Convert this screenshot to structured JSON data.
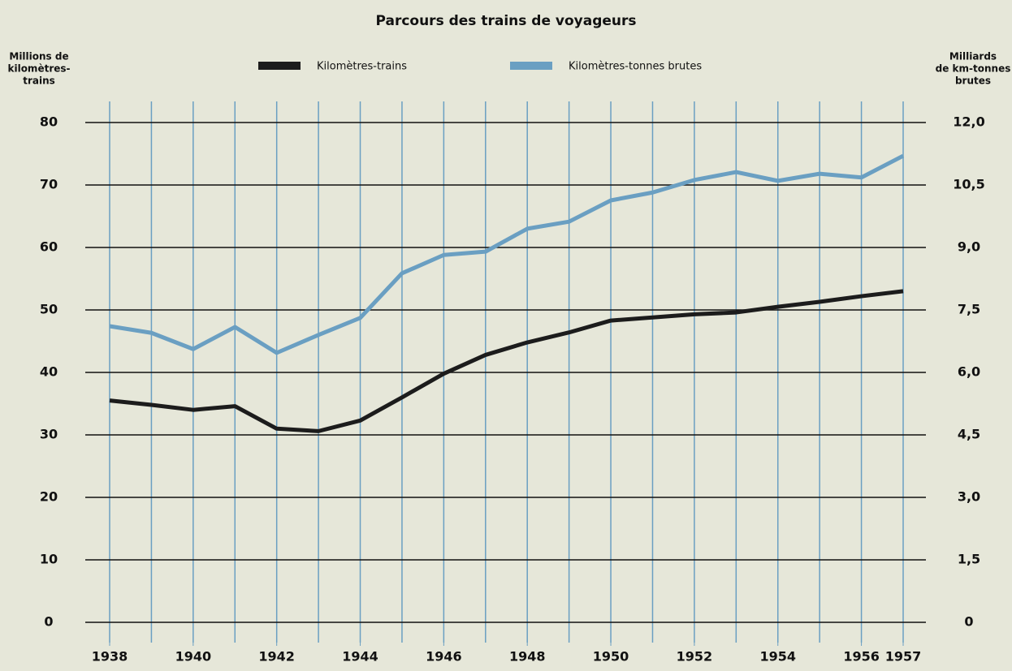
{
  "chart_data": {
    "type": "line",
    "title": "Parcours des trains de voyageurs",
    "y_label": [
      "Millions de",
      "kilomètres-",
      "trains"
    ],
    "y2_label": [
      "Milliards",
      "de km-tonnes",
      "brutes"
    ],
    "x": [
      1938,
      1939,
      1940,
      1941,
      1942,
      1943,
      1944,
      1945,
      1946,
      1947,
      1948,
      1949,
      1950,
      1951,
      1952,
      1953,
      1954,
      1955,
      1956,
      1957
    ],
    "xlim": [
      1938,
      1957
    ],
    "xticks": [
      1938,
      1940,
      1942,
      1944,
      1946,
      1948,
      1950,
      1952,
      1954,
      1956,
      1957
    ],
    "ylim": [
      0,
      80
    ],
    "yticks": [
      0,
      10,
      20,
      30,
      40,
      50,
      60,
      70,
      80
    ],
    "y2lim": [
      0,
      12
    ],
    "y2ticks": [
      0,
      {
        "value": 1.5,
        "label": "1,5"
      },
      {
        "value": 3,
        "label": "3,0"
      },
      {
        "value": 4.5,
        "label": "4,5"
      },
      {
        "value": 6,
        "label": "6,0"
      },
      {
        "value": 7.5,
        "label": "7,5"
      },
      {
        "value": 9,
        "label": "9,0"
      },
      {
        "value": 10.5,
        "label": "10,5"
      },
      {
        "value": 12,
        "label": "12,0"
      }
    ],
    "grid": true,
    "series": [
      {
        "name": "Kilomètres-trains",
        "color": "#1c1c1c",
        "values": [
          35.5,
          34.8,
          34.0,
          34.6,
          31.0,
          30.6,
          32.3,
          36.0,
          39.8,
          42.8,
          44.8,
          46.4,
          48.3,
          48.8,
          49.3,
          49.6,
          50.5,
          51.3,
          52.2,
          53.0
        ]
      },
      {
        "name": "Kilomètres-tonnes brutes",
        "color": "#6a9fc2",
        "axis": "y2",
        "values": [
          7.11,
          6.95,
          6.56,
          7.09,
          6.47,
          6.9,
          7.31,
          8.38,
          8.82,
          8.9,
          9.45,
          9.62,
          10.13,
          10.32,
          10.62,
          10.81,
          10.6,
          10.77,
          10.68,
          11.2
        ]
      }
    ]
  }
}
